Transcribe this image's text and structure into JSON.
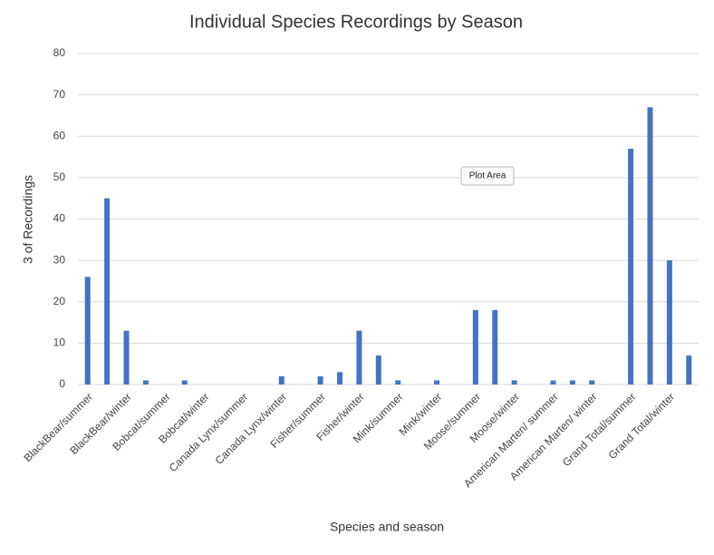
{
  "chart_data": {
    "type": "bar",
    "title": "Individual Species Recordings by Season",
    "x_label": "Species and season",
    "y_label": "3 of Recordings",
    "annotation": "Plot Area",
    "categories": [
      "BlackBear/summer",
      null,
      "BlackBear/winter",
      null,
      "Bobcat/summer",
      null,
      "Bobcat/winter",
      null,
      "Canada Lynx/summer",
      null,
      "Canada Lynx/winter",
      null,
      "Fisher/summer",
      null,
      "Fisher/winter",
      null,
      "Mink/summer",
      null,
      "Mink/winter",
      null,
      "Moose/summer",
      null,
      "Moose/winter",
      null,
      "American Marten/ summer",
      null,
      "American Marten/ winter",
      null,
      "Grand Total/summer",
      null,
      "Grand Total/winter",
      null
    ],
    "values": [
      26,
      45,
      13,
      1,
      0,
      1,
      0,
      0,
      0,
      0,
      2,
      0,
      2,
      3,
      13,
      7,
      1,
      0,
      1,
      0,
      18,
      18,
      1,
      0,
      1,
      1,
      1,
      0,
      57,
      67,
      30,
      7
    ],
    "color": "#4472c4",
    "ylim": [
      0,
      80
    ],
    "yticks": [
      0,
      10,
      20,
      30,
      40,
      50,
      60,
      70,
      80
    ],
    "grid": true
  }
}
